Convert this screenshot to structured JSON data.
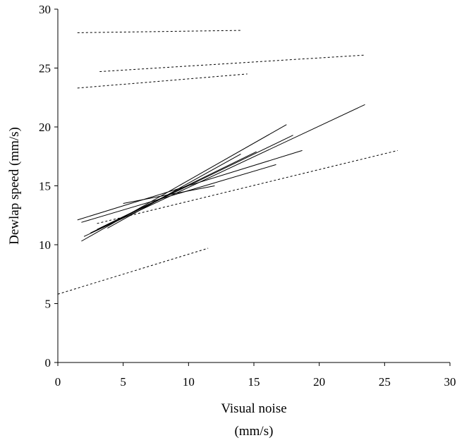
{
  "chart_data": {
    "type": "line",
    "xlabel_lines": [
      "Visual noise",
      "(mm/s)"
    ],
    "ylabel": "Dewlap speed (mm/s)",
    "xlim": [
      0,
      30
    ],
    "ylim": [
      0,
      30
    ],
    "xticks": [
      0,
      5,
      10,
      15,
      20,
      25,
      30
    ],
    "yticks": [
      0,
      5,
      10,
      15,
      20,
      25,
      30
    ],
    "grid": false,
    "series": [
      {
        "style": "dashed",
        "x": [
          1.5,
          14.0
        ],
        "y": [
          28.0,
          28.2
        ]
      },
      {
        "style": "dashed",
        "x": [
          3.2,
          23.5
        ],
        "y": [
          24.7,
          26.1
        ]
      },
      {
        "style": "dashed",
        "x": [
          1.5,
          14.5
        ],
        "y": [
          23.3,
          24.5
        ]
      },
      {
        "style": "dashed",
        "x": [
          3.0,
          26.0
        ],
        "y": [
          11.8,
          18.0
        ]
      },
      {
        "style": "dashed",
        "x": [
          0.0,
          11.5
        ],
        "y": [
          5.8,
          9.7
        ]
      },
      {
        "style": "solid",
        "x": [
          1.8,
          17.5
        ],
        "y": [
          10.3,
          20.2
        ]
      },
      {
        "style": "solid",
        "x": [
          2.0,
          23.5
        ],
        "y": [
          10.7,
          21.9
        ]
      },
      {
        "style": "solid",
        "x": [
          2.5,
          18.0
        ],
        "y": [
          11.0,
          19.3
        ]
      },
      {
        "style": "solid",
        "x": [
          3.0,
          15.2
        ],
        "y": [
          11.3,
          17.9
        ]
      },
      {
        "style": "solid",
        "x": [
          1.5,
          18.7
        ],
        "y": [
          12.1,
          18.0
        ]
      },
      {
        "style": "solid",
        "x": [
          1.8,
          16.7
        ],
        "y": [
          11.9,
          16.8
        ]
      },
      {
        "style": "solid",
        "x": [
          5.0,
          12.0
        ],
        "y": [
          13.5,
          15.0
        ]
      },
      {
        "style": "solid",
        "x": [
          3.8,
          14.0
        ],
        "y": [
          11.4,
          17.7
        ]
      }
    ]
  }
}
